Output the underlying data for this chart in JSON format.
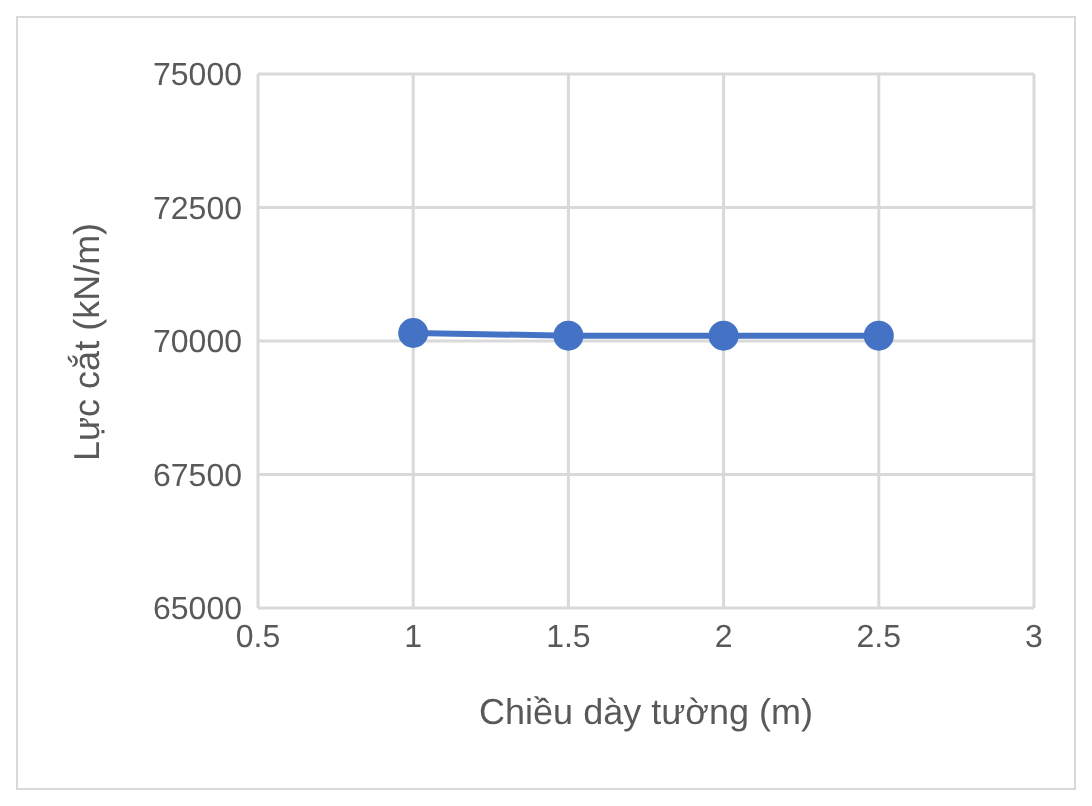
{
  "chart_data": {
    "type": "line",
    "xlabel": "Chiều dày tường (m)",
    "ylabel": "Lực cắt (kN/m)",
    "x": [
      1,
      1.5,
      2,
      2.5
    ],
    "series": [
      {
        "color": "#4472c4",
        "values": [
          70150,
          70100,
          70100,
          70100
        ]
      }
    ],
    "xlim": [
      0.5,
      3
    ],
    "xticks": [
      0.5,
      1,
      1.5,
      2,
      2.5,
      3
    ],
    "ylim": [
      65000,
      75000
    ],
    "yticks": [
      65000,
      67500,
      70000,
      72500,
      75000
    ],
    "grid": true,
    "marker": "circle",
    "line_style": "solid"
  }
}
